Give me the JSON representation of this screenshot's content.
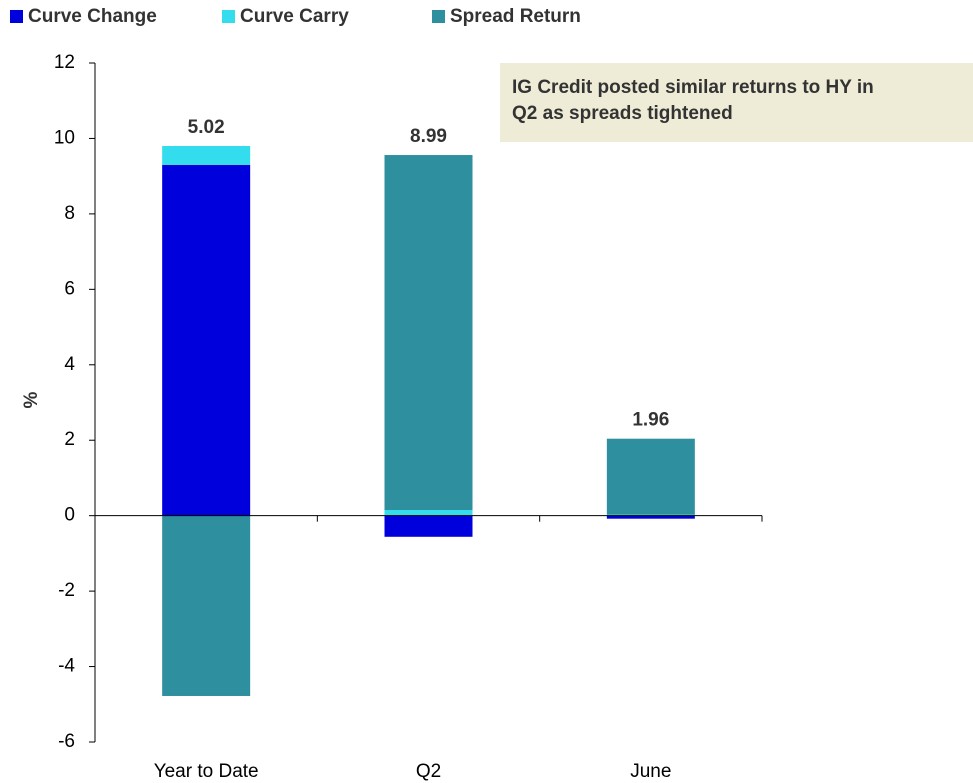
{
  "chart_data": {
    "type": "stacked_bar",
    "annotation": [
      "IG Credit posted similar returns to HY in",
      "Q2 as spreads tightened"
    ],
    "y_label": "%",
    "categories": [
      "Year to Date",
      "Q2",
      "June"
    ],
    "series": [
      {
        "name": "Curve Change",
        "color": "#0000dd",
        "values": [
          9.3,
          -0.56,
          -0.08
        ]
      },
      {
        "name": "Curve Carry",
        "color": "#33ddee",
        "values": [
          0.5,
          0.15,
          0.03
        ]
      },
      {
        "name": "Spread Return",
        "color": "#2e8f9f",
        "values": [
          -4.78,
          9.41,
          2.01
        ]
      }
    ],
    "totals": [
      5.02,
      8.99,
      1.96
    ],
    "ylim": [
      -6,
      12
    ],
    "yticks": [
      -6,
      -4,
      -2,
      0,
      2,
      4,
      6,
      8,
      10,
      12
    ]
  }
}
